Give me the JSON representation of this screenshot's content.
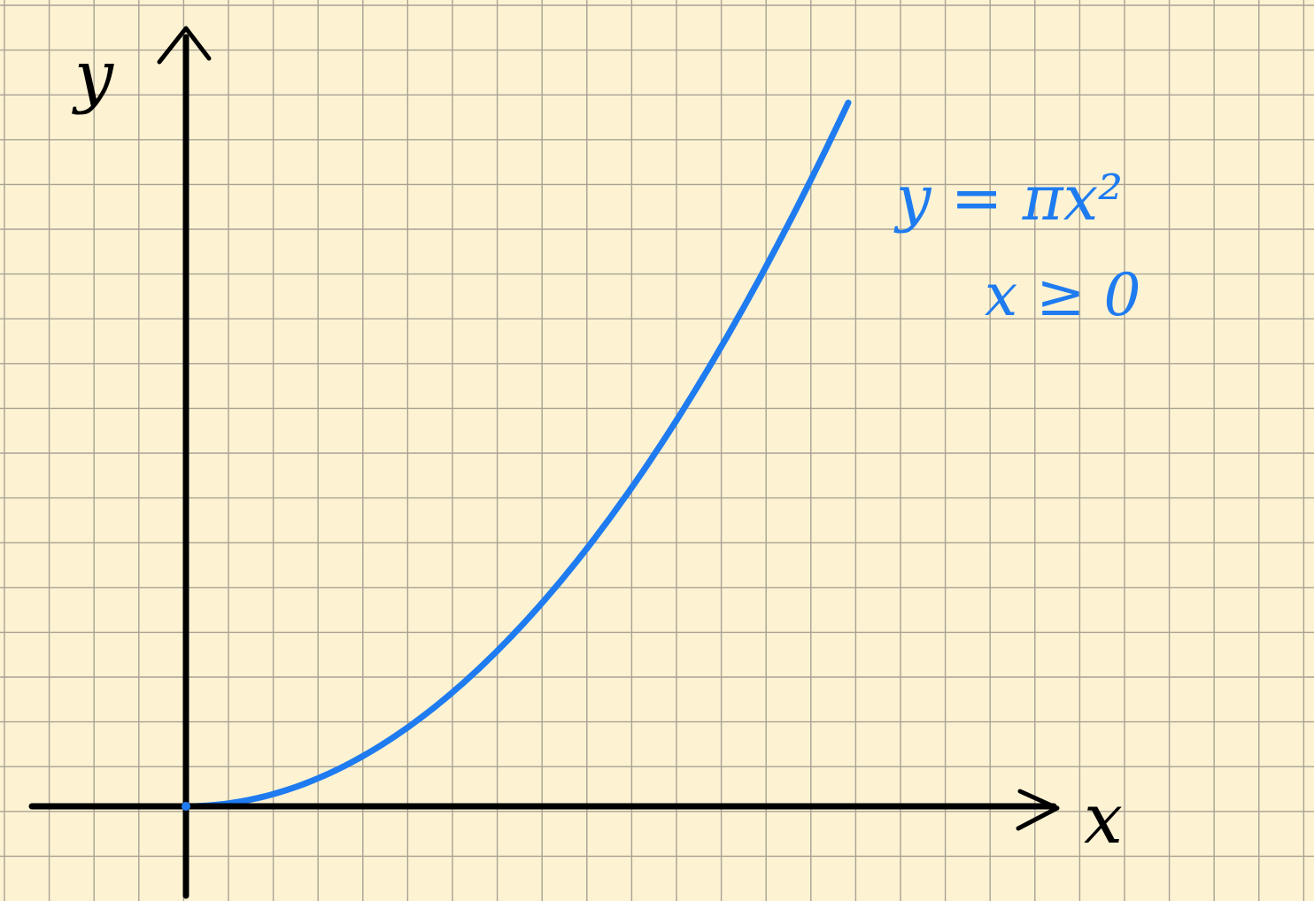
{
  "colors": {
    "paper": "#fdf3d3",
    "grid": "#a9a294",
    "axes": "#000000",
    "curve": "#1f7bf0"
  },
  "chart_data": {
    "type": "line",
    "grid": true,
    "xlabel": "x",
    "ylabel": "y",
    "annotations": {
      "equation": "y = πx²",
      "condition": "x ≥ 0"
    },
    "series": [
      {
        "function": "y = πx²",
        "x": [
          0,
          0.5,
          1,
          1.5,
          2,
          2.5,
          3,
          3.5,
          4,
          4.5,
          5,
          5.5,
          6,
          6.5,
          7,
          7.5
        ],
        "y": [
          0,
          0.79,
          3.14,
          7.07,
          12.57,
          19.63,
          28.27,
          38.48,
          50.27,
          63.62,
          78.54,
          95.03,
          113.1,
          132.73,
          153.94,
          176.71
        ]
      }
    ]
  }
}
